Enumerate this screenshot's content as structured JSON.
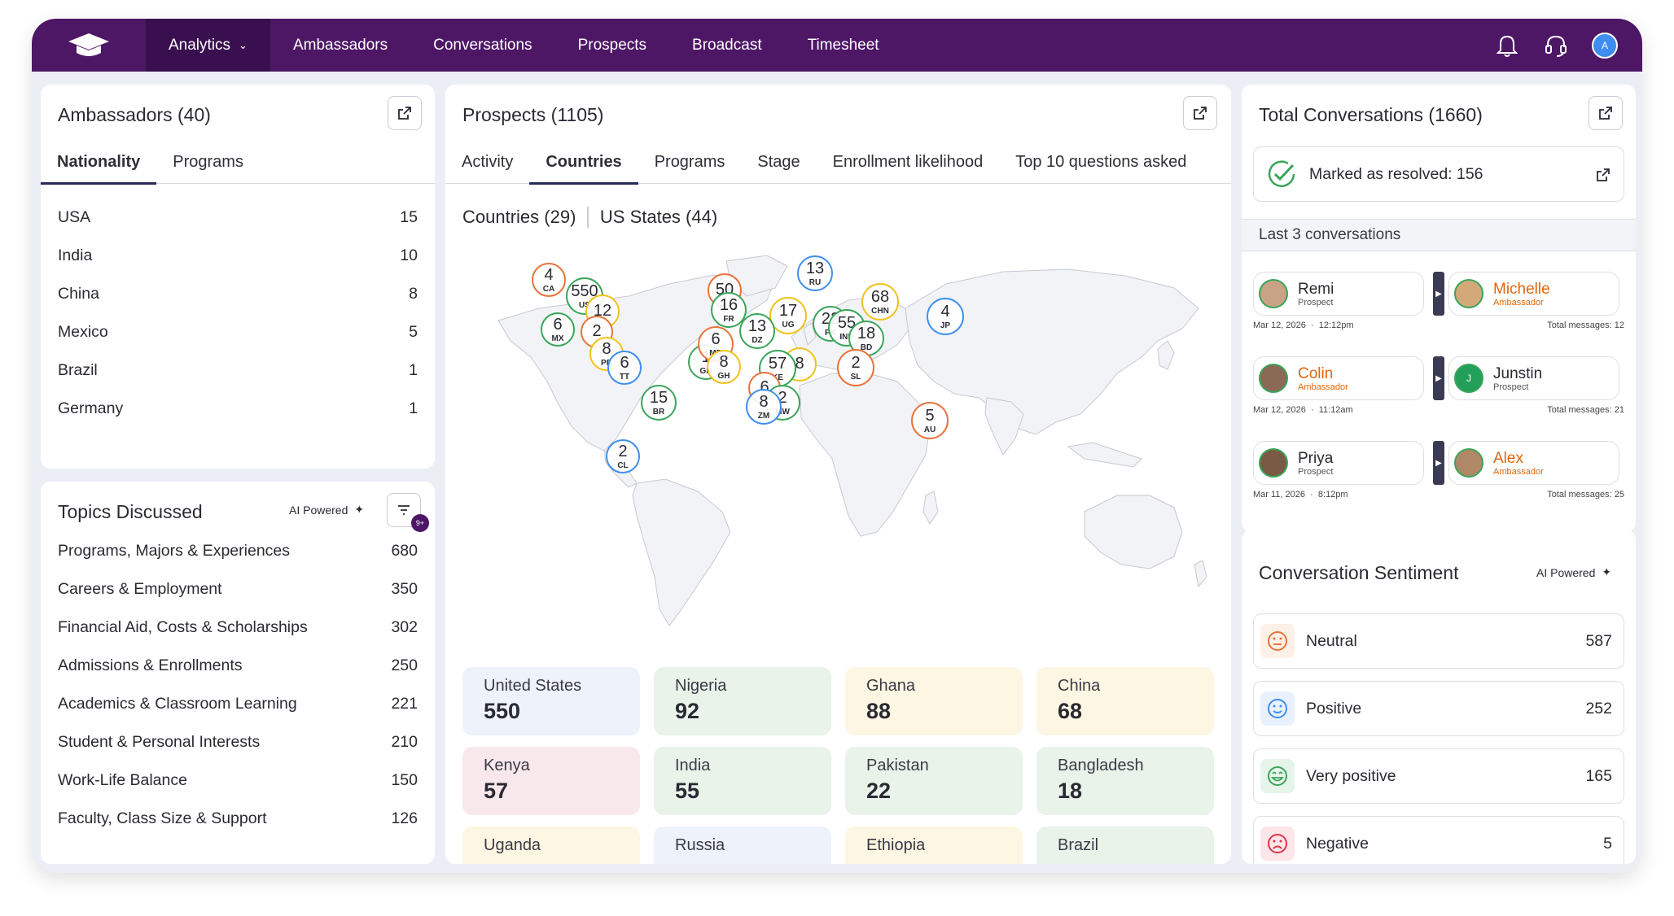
{
  "nav": {
    "items": [
      {
        "label": "Analytics",
        "active": true
      },
      {
        "label": "Ambassadors"
      },
      {
        "label": "Conversations"
      },
      {
        "label": "Prospects"
      },
      {
        "label": "Broadcast"
      },
      {
        "label": "Timesheet"
      }
    ],
    "avatar_initial": "A"
  },
  "ambassadors": {
    "title": "Ambassadors (40)",
    "tabs": [
      "Nationality",
      "Programs"
    ],
    "rows": [
      {
        "label": "USA",
        "value": "15"
      },
      {
        "label": "India",
        "value": "10"
      },
      {
        "label": "China",
        "value": "8"
      },
      {
        "label": "Mexico",
        "value": "5"
      },
      {
        "label": "Brazil",
        "value": "1"
      },
      {
        "label": "Germany",
        "value": "1"
      }
    ]
  },
  "topics": {
    "title": "Topics Discussed",
    "ai_label": "AI Powered",
    "filter_badge": "9+",
    "rows": [
      {
        "label": "Programs, Majors & Experiences",
        "value": "680"
      },
      {
        "label": "Careers & Employment",
        "value": "350"
      },
      {
        "label": "Financial Aid, Costs & Scholarships",
        "value": "302"
      },
      {
        "label": "Admissions & Enrollments",
        "value": "250"
      },
      {
        "label": "Academics & Classroom Learning",
        "value": "221"
      },
      {
        "label": "Student & Personal Interests",
        "value": "210"
      },
      {
        "label": "Work-Life Balance",
        "value": "150"
      },
      {
        "label": "Faculty, Class Size & Support",
        "value": "126"
      }
    ]
  },
  "prospects": {
    "title": "Prospects (1105)",
    "tabs": [
      "Activity",
      "Countries",
      "Programs",
      "Stage",
      "Enrollment likelihood",
      "Top 10 questions asked"
    ],
    "subtabs": [
      "Countries (29)",
      "US States (44)"
    ],
    "bubbles": [
      {
        "v": "4",
        "c": "CA",
        "color": "#e8733a"
      },
      {
        "v": "550",
        "c": "US",
        "color": "#3aa55a"
      },
      {
        "v": "12",
        "c": "",
        "color": "#f2c21b"
      },
      {
        "v": "6",
        "c": "MX",
        "color": "#3aa55a"
      },
      {
        "v": "2",
        "c": "",
        "color": "#e8733a"
      },
      {
        "v": "8",
        "c": "PR",
        "color": "#f2c21b"
      },
      {
        "v": "6",
        "c": "TT",
        "color": "#3e8ef0"
      },
      {
        "v": "15",
        "c": "BR",
        "color": "#3aa55a"
      },
      {
        "v": "2",
        "c": "CL",
        "color": "#3e8ef0"
      },
      {
        "v": "50",
        "c": "",
        "color": "#e8733a"
      },
      {
        "v": "16",
        "c": "FR",
        "color": "#3aa55a"
      },
      {
        "v": "13",
        "c": "RU",
        "color": "#3e8ef0"
      },
      {
        "v": "17",
        "c": "UG",
        "color": "#f2c21b"
      },
      {
        "v": "13",
        "c": "DZ",
        "color": "#3aa55a"
      },
      {
        "v": "68",
        "c": "CHN",
        "color": "#f2c21b"
      },
      {
        "v": "4",
        "c": "JP",
        "color": "#3e8ef0"
      },
      {
        "v": "22",
        "c": "PK",
        "color": "#3aa55a"
      },
      {
        "v": "55",
        "c": "IND",
        "color": "#3aa55a"
      },
      {
        "v": "18",
        "c": "BD",
        "color": "#3aa55a"
      },
      {
        "v": "1",
        "c": "GN",
        "color": "#3aa55a"
      },
      {
        "v": "6",
        "c": "MR",
        "color": "#e8733a"
      },
      {
        "v": "8",
        "c": "GH",
        "color": "#f2c21b"
      },
      {
        "v": "8",
        "c": "",
        "color": "#f2c21b"
      },
      {
        "v": "57",
        "c": "KE",
        "color": "#3aa55a"
      },
      {
        "v": "2",
        "c": "SL",
        "color": "#e8733a"
      },
      {
        "v": "6",
        "c": "",
        "color": "#e8733a"
      },
      {
        "v": "2",
        "c": "MW",
        "color": "#3aa55a"
      },
      {
        "v": "8",
        "c": "ZM",
        "color": "#3e8ef0"
      },
      {
        "v": "5",
        "c": "AU",
        "color": "#e8733a"
      }
    ],
    "stats": [
      {
        "name": "United States",
        "value": "550",
        "bg": "#edf2fb"
      },
      {
        "name": "Nigeria",
        "value": "92",
        "bg": "#e9f3ea"
      },
      {
        "name": "Ghana",
        "value": "88",
        "bg": "#fcf6e2"
      },
      {
        "name": "China",
        "value": "68",
        "bg": "#fcf6e2"
      },
      {
        "name": "Kenya",
        "value": "57",
        "bg": "#f8e8ec"
      },
      {
        "name": "India",
        "value": "55",
        "bg": "#e9f3ea"
      },
      {
        "name": "Pakistan",
        "value": "22",
        "bg": "#e9f3ea"
      },
      {
        "name": "Bangladesh",
        "value": "18",
        "bg": "#e9f3ea"
      },
      {
        "name": "Uganda",
        "value": "",
        "bg": "#fcf6e2"
      },
      {
        "name": "Russia",
        "value": "",
        "bg": "#edf2fb"
      },
      {
        "name": "Ethiopia",
        "value": "",
        "bg": "#fcf6e2"
      },
      {
        "name": "Brazil",
        "value": "",
        "bg": "#e9f3ea"
      }
    ]
  },
  "conversations": {
    "title": "Total Conversations (1660)",
    "resolved": "Marked as resolved: 156",
    "last_label": "Last 3 conversations",
    "items": [
      {
        "a": {
          "name": "Remi",
          "role": "Prospect",
          "amb": false
        },
        "b": {
          "name": "Michelle",
          "role": "Ambassador",
          "amb": true
        },
        "date": "Mar 12, 2026",
        "time": "12:12pm",
        "total": "Total messages: 12"
      },
      {
        "a": {
          "name": "Colin",
          "role": "Ambassador",
          "amb": true
        },
        "b": {
          "name": "Junstin",
          "role": "Prospect",
          "amb": false,
          "initial": "J"
        },
        "date": "Mar 12, 2026",
        "time": "11:12am",
        "total": "Total messages: 21"
      },
      {
        "a": {
          "name": "Priya",
          "role": "Prospect",
          "amb": false
        },
        "b": {
          "name": "Alex",
          "role": "Ambassador",
          "amb": true
        },
        "date": "Mar 11, 2026",
        "time": "8:12pm",
        "total": "Total messages: 25"
      }
    ]
  },
  "sentiment": {
    "title": "Conversation Sentiment",
    "ai_label": "AI Powered",
    "rows": [
      {
        "label": "Neutral",
        "value": "587",
        "icon": "neutral-face-icon",
        "color": "#e8733a",
        "bg": "#fdf0e6"
      },
      {
        "label": "Positive",
        "value": "252",
        "icon": "smile-face-icon",
        "color": "#3e8ef0",
        "bg": "#e8f1fd"
      },
      {
        "label": "Very positive",
        "value": "165",
        "icon": "grin-face-icon",
        "color": "#3aa55a",
        "bg": "#e6f4ea"
      },
      {
        "label": "Negative",
        "value": "5",
        "icon": "sad-face-icon",
        "color": "#e0304a",
        "bg": "#fce6ea"
      }
    ]
  }
}
